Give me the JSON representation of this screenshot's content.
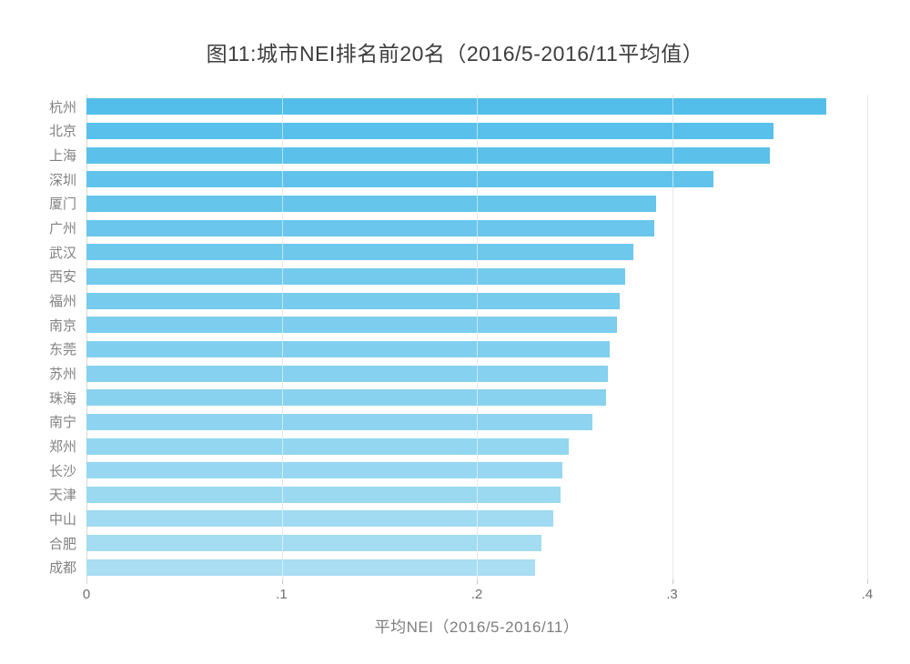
{
  "chart_data": {
    "type": "bar",
    "orientation": "horizontal",
    "title": "图11:城市NEI排名前20名（2016/5-2016/11平均值）",
    "xlabel": "平均NEI（2016/5-2016/11）",
    "categories": [
      "杭州",
      "北京",
      "上海",
      "深圳",
      "厦门",
      "广州",
      "武汉",
      "西安",
      "福州",
      "南京",
      "东莞",
      "苏州",
      "珠海",
      "南宁",
      "郑州",
      "长沙",
      "天津",
      "中山",
      "合肥",
      "成都"
    ],
    "values": [
      0.379,
      0.352,
      0.35,
      0.321,
      0.292,
      0.291,
      0.28,
      0.276,
      0.273,
      0.272,
      0.268,
      0.267,
      0.266,
      0.259,
      0.247,
      0.244,
      0.243,
      0.239,
      0.233,
      0.23
    ],
    "xlim": [
      0,
      0.4
    ],
    "xticks": [
      0,
      0.1,
      0.2,
      0.3,
      0.4
    ],
    "xtick_labels": [
      "0",
      ".1",
      ".2",
      ".3",
      ".4"
    ],
    "grid": "vertical",
    "legend": "none"
  },
  "style": {
    "bar_color_top": "#53bee9",
    "bar_color_bottom": "#a9def3",
    "gridline_color": "#c9c9c9",
    "axis_line_color": "#d6d6d6",
    "title_color": "#3d3d3d",
    "category_label_color": "#828282",
    "tick_label_color": "#6e6e6e",
    "background_color": "#ffffff"
  }
}
